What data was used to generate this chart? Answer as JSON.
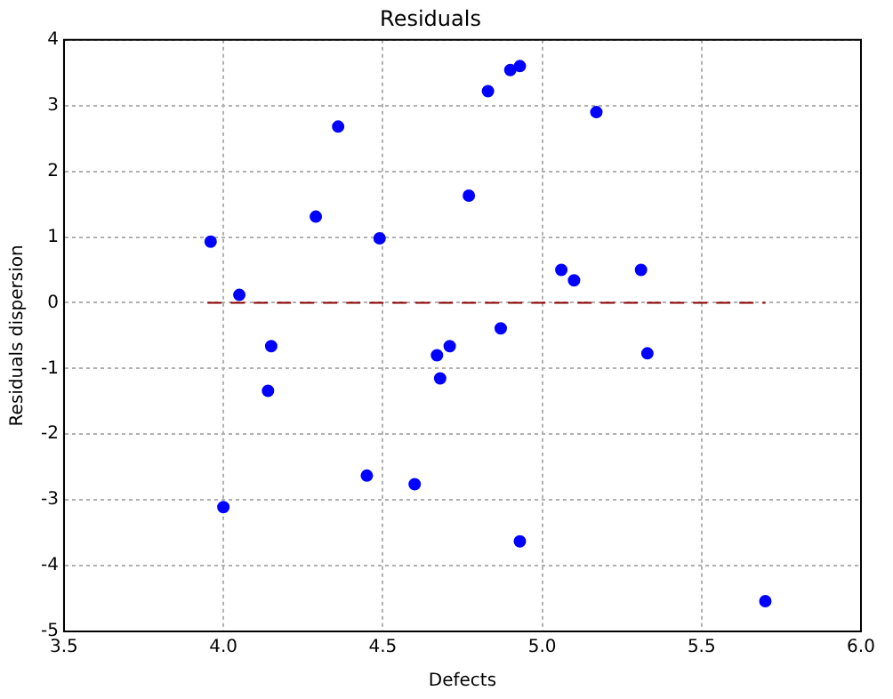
{
  "chart_data": {
    "type": "scatter",
    "title": "Residuals",
    "xlabel": "Defects",
    "ylabel": "Residuals dispersion",
    "xlim": [
      3.5,
      6.0
    ],
    "xticks": [
      {
        "value": 3.5,
        "label": "3.5"
      },
      {
        "value": 4,
        "label": "4.0"
      },
      {
        "value": 4.5,
        "label": "4.5"
      },
      {
        "value": 5,
        "label": "5.0"
      },
      {
        "value": 5.5,
        "label": "5.5"
      },
      {
        "value": 6,
        "label": "6.0"
      }
    ],
    "ylim": [
      -5,
      4
    ],
    "yticks": [
      -5,
      -4,
      -3,
      -2,
      -1,
      0,
      1,
      2,
      3,
      4
    ],
    "grid": true,
    "legend": false,
    "marker": "circle",
    "series": [
      {
        "color": "#0000ff",
        "x": [
          3.96,
          4.05,
          4.29,
          4.36,
          4.49,
          4.77,
          4.83,
          4.9,
          4.93,
          5.17,
          5.06,
          5.1,
          5.31,
          5.33,
          4.15,
          4.14,
          4.67,
          4.71,
          4.68,
          4.87,
          4.45,
          4.6,
          4.0,
          4.93,
          5.7
        ],
        "values": [
          0.93,
          0.12,
          1.31,
          2.68,
          0.98,
          1.63,
          3.22,
          3.54,
          3.6,
          2.9,
          0.5,
          0.34,
          0.5,
          -0.77,
          -0.66,
          -1.34,
          -0.8,
          -0.66,
          -1.15,
          -0.39,
          -2.63,
          -2.76,
          -3.11,
          -3.63,
          -4.54
        ]
      },
      {
        "type": "line",
        "color": "#8b0000",
        "line_style": "dashed",
        "marker": "none",
        "x": [
          3.95,
          5.7
        ],
        "values": [
          0,
          0
        ]
      }
    ]
  }
}
